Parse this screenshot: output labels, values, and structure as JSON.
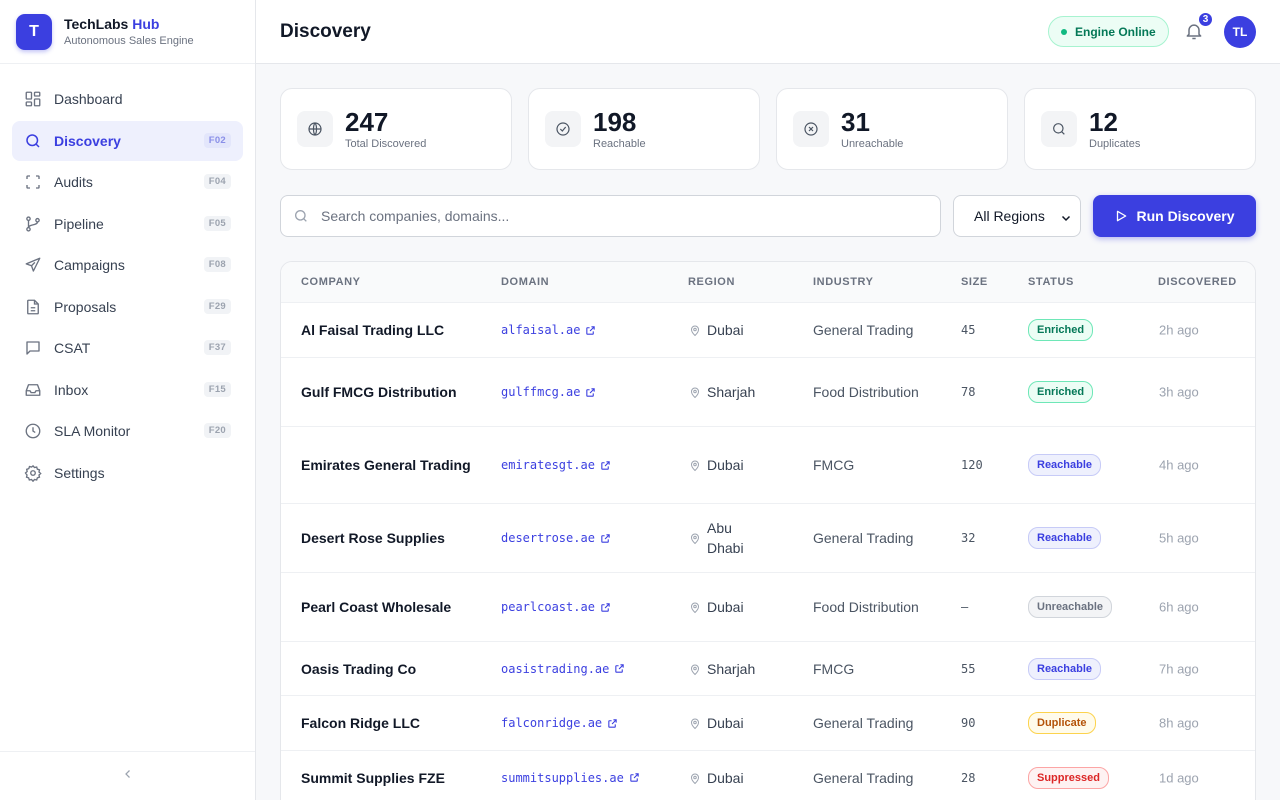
{
  "brand": {
    "name_a": "TechLabs",
    "name_b": " Hub",
    "subtitle": "Autonomous Sales Engine",
    "logo_glyph": "T"
  },
  "sidebar": {
    "items": [
      {
        "label": "Dashboard",
        "key": "",
        "icon": "dashboard-icon"
      },
      {
        "label": "Discovery",
        "key": "F02",
        "icon": "search-icon"
      },
      {
        "label": "Audits",
        "key": "F04",
        "icon": "scan-icon"
      },
      {
        "label": "Pipeline",
        "key": "F05",
        "icon": "pipeline-icon"
      },
      {
        "label": "Campaigns",
        "key": "F08",
        "icon": "send-icon"
      },
      {
        "label": "Proposals",
        "key": "F29",
        "icon": "document-icon"
      },
      {
        "label": "CSAT",
        "key": "F37",
        "icon": "chat-icon"
      },
      {
        "label": "Inbox",
        "key": "F15",
        "icon": "inbox-icon"
      },
      {
        "label": "SLA Monitor",
        "key": "F20",
        "icon": "clock-icon"
      },
      {
        "label": "Settings",
        "key": "",
        "icon": "gear-icon"
      }
    ],
    "active": "Discovery",
    "collapse_glyph": "‹"
  },
  "header": {
    "title": "Discovery",
    "engine_status": "Engine Online",
    "notifications": "3",
    "avatar_initials": "TL"
  },
  "stats": [
    {
      "value": "247",
      "label": "Total Discovered",
      "icon": "globe-icon"
    },
    {
      "value": "198",
      "label": "Reachable",
      "icon": "check-circle-icon"
    },
    {
      "value": "31",
      "label": "Unreachable",
      "icon": "x-circle-icon"
    },
    {
      "value": "12",
      "label": "Duplicates",
      "icon": "search-icon"
    }
  ],
  "toolbar": {
    "search_placeholder": "Search companies, domains...",
    "region_value": "All Regions",
    "run_label": "Run Discovery"
  },
  "table": {
    "columns": [
      "COMPANY",
      "DOMAIN",
      "REGION",
      "INDUSTRY",
      "SIZE",
      "STATUS",
      "DISCOVERED"
    ],
    "rows": [
      {
        "company": "Al Faisal Trading LLC",
        "domain": "alfaisal.ae",
        "region": "Dubai",
        "industry": "General Trading",
        "size": "45",
        "status": "Enriched",
        "discovered": "2h ago"
      },
      {
        "company": "Gulf FMCG Distribution",
        "domain": "gulffmcg.ae",
        "region": "Sharjah",
        "industry": "Food Distribution",
        "size": "78",
        "status": "Enriched",
        "discovered": "3h ago"
      },
      {
        "company": "Emirates General Trading",
        "domain": "emiratesgt.ae",
        "region": "Dubai",
        "industry": "FMCG",
        "size": "120",
        "status": "Reachable",
        "discovered": "4h ago"
      },
      {
        "company": "Desert Rose Supplies",
        "domain": "desertrose.ae",
        "region": "Abu Dhabi",
        "industry": "General Trading",
        "size": "32",
        "status": "Reachable",
        "discovered": "5h ago"
      },
      {
        "company": "Pearl Coast Wholesale",
        "domain": "pearlcoast.ae",
        "region": "Dubai",
        "industry": "Food Distribution",
        "size": "—",
        "status": "Unreachable",
        "discovered": "6h ago"
      },
      {
        "company": "Oasis Trading Co",
        "domain": "oasistrading.ae",
        "region": "Sharjah",
        "industry": "FMCG",
        "size": "55",
        "status": "Reachable",
        "discovered": "7h ago"
      },
      {
        "company": "Falcon Ridge LLC",
        "domain": "falconridge.ae",
        "region": "Dubai",
        "industry": "General Trading",
        "size": "90",
        "status": "Duplicate",
        "discovered": "8h ago"
      },
      {
        "company": "Summit Supplies FZE",
        "domain": "summitsupplies.ae",
        "region": "Dubai",
        "industry": "General Trading",
        "size": "28",
        "status": "Suppressed",
        "discovered": "1d ago"
      }
    ]
  },
  "colors": {
    "accent": "#3b3fe0",
    "enriched": "#047857",
    "reachable": "#3b3fe0",
    "unreachable": "#6b7280",
    "duplicate": "#b45309",
    "suppressed": "#dc2626"
  }
}
